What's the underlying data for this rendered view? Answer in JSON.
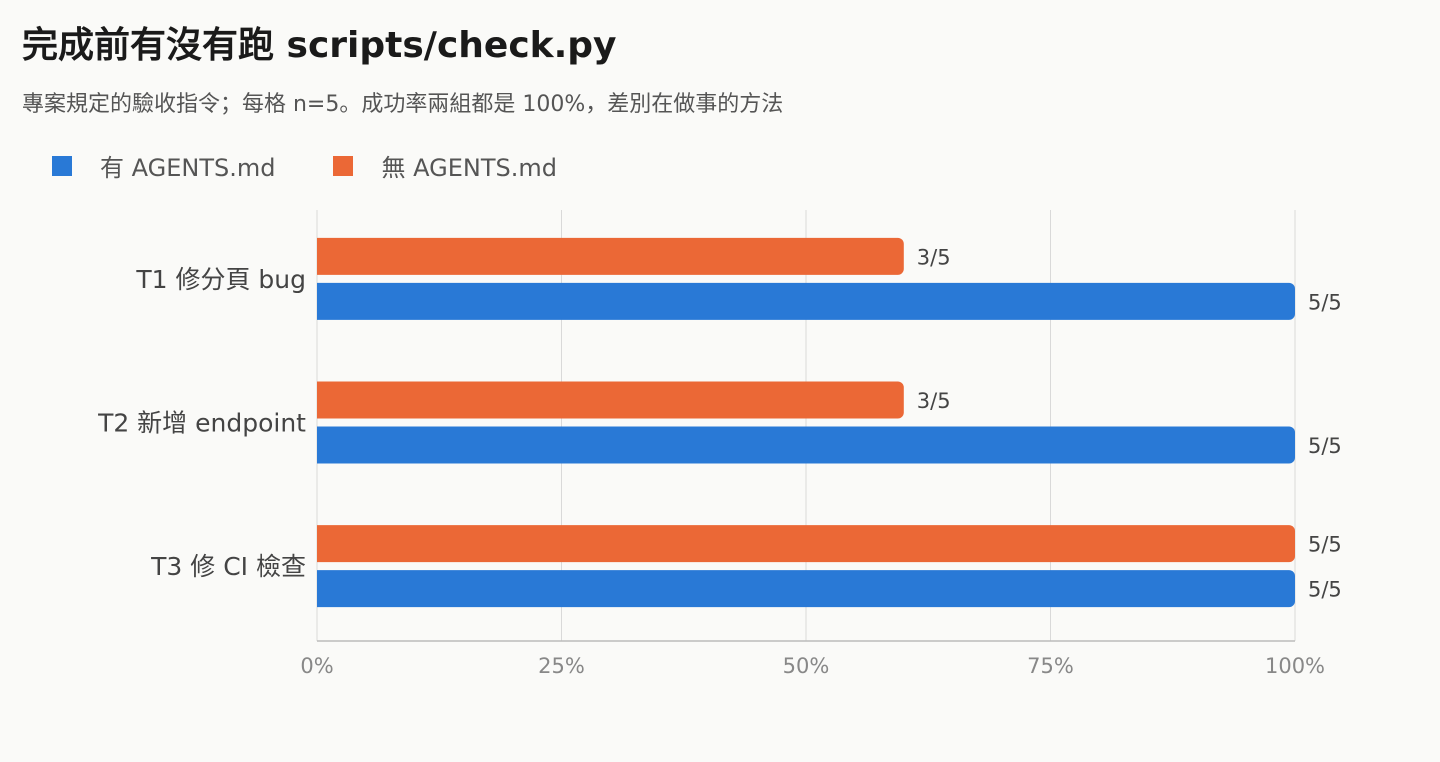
{
  "title": "完成前有沒有跑 scripts/check.py",
  "subtitle": "專案規定的驗收指令；每格 n=5。成功率兩組都是 100%，差別在做事的方法",
  "colors": {
    "with": "#2979d6",
    "without": "#eb6836",
    "grid": "#d9d9d9",
    "axis": "#bbbbbb"
  },
  "chart_data": {
    "type": "bar",
    "orientation": "horizontal",
    "categories": [
      "T1 修分頁 bug",
      "T2 新增 endpoint",
      "T3 修 CI 檢查"
    ],
    "series": [
      {
        "name": "無 AGENTS.md",
        "values": [
          60,
          60,
          100
        ],
        "labels": [
          "3/5",
          "3/5",
          "5/5"
        ],
        "color": "#eb6836"
      },
      {
        "name": "有 AGENTS.md",
        "values": [
          100,
          100,
          100
        ],
        "labels": [
          "5/5",
          "5/5",
          "5/5"
        ],
        "color": "#2979d6"
      }
    ],
    "legend_order": [
      "有 AGENTS.md",
      "無 AGENTS.md"
    ],
    "xlim": [
      0,
      100
    ],
    "xticks": [
      0,
      25,
      50,
      75,
      100
    ],
    "xtick_labels": [
      "0%",
      "25%",
      "50%",
      "75%",
      "100%"
    ],
    "grid": true,
    "legend_position": "top-left"
  }
}
